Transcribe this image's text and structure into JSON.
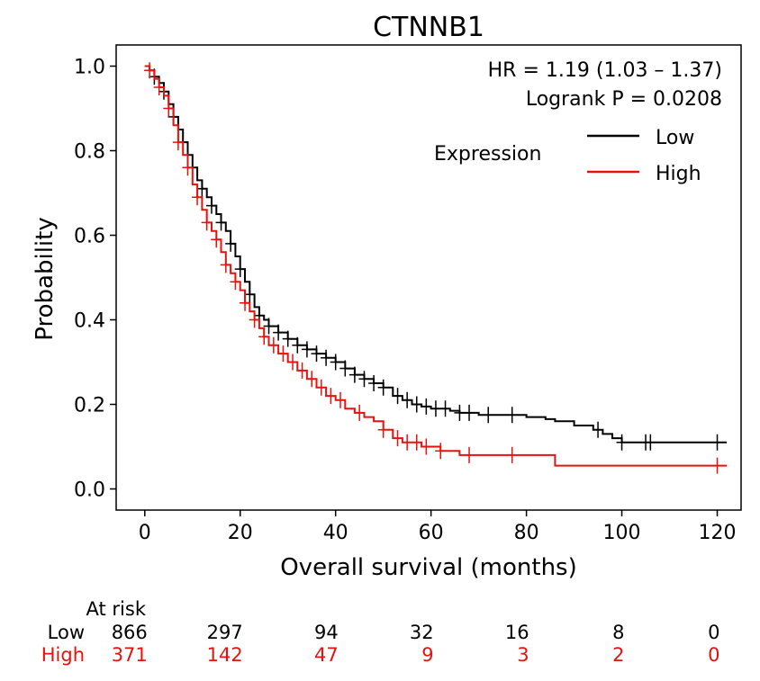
{
  "chart_data": {
    "type": "line",
    "title": "CTNNB1",
    "xlabel": "Overall survival (months)",
    "ylabel": "Probability",
    "xlim": [
      -6,
      125
    ],
    "ylim": [
      -0.05,
      1.05
    ],
    "xticks": [
      0,
      20,
      40,
      60,
      80,
      100,
      120
    ],
    "yticks": [
      0.0,
      0.2,
      0.4,
      0.6,
      0.8,
      1.0
    ],
    "xtick_labels": [
      "0",
      "20",
      "40",
      "60",
      "80",
      "100",
      "120"
    ],
    "ytick_labels": [
      "0.0",
      "0.2",
      "0.4",
      "0.6",
      "0.8",
      "1.0"
    ],
    "annotations": {
      "hr": "HR = 1.19 (1.03 – 1.37)",
      "logrank": "Logrank P = 0.0208"
    },
    "legend": {
      "title": "Expression",
      "position": "top-right",
      "entries": [
        {
          "label": "Low",
          "color": "#000000"
        },
        {
          "label": "High",
          "color": "#e8120c"
        }
      ]
    },
    "series": [
      {
        "name": "Low",
        "color": "#000000",
        "x": [
          0,
          1,
          2,
          3,
          4,
          5,
          6,
          7,
          8,
          9,
          10,
          11,
          12,
          13,
          14,
          15,
          16,
          17,
          18,
          19,
          20,
          21,
          22,
          23,
          24,
          25,
          26,
          28,
          30,
          32,
          34,
          36,
          38,
          40,
          42,
          44,
          46,
          48,
          50,
          52,
          54,
          56,
          58,
          60,
          62,
          64,
          66,
          68,
          70,
          75,
          80,
          82,
          84,
          86,
          88,
          90,
          92,
          94,
          96,
          98,
          100,
          105,
          110,
          115,
          120,
          122
        ],
        "y": [
          1.0,
          0.99,
          0.975,
          0.96,
          0.94,
          0.91,
          0.88,
          0.85,
          0.82,
          0.79,
          0.76,
          0.73,
          0.71,
          0.69,
          0.67,
          0.65,
          0.63,
          0.61,
          0.58,
          0.55,
          0.52,
          0.49,
          0.46,
          0.43,
          0.41,
          0.4,
          0.385,
          0.37,
          0.355,
          0.34,
          0.33,
          0.32,
          0.31,
          0.3,
          0.285,
          0.27,
          0.26,
          0.25,
          0.24,
          0.22,
          0.21,
          0.2,
          0.195,
          0.19,
          0.19,
          0.185,
          0.18,
          0.18,
          0.175,
          0.175,
          0.17,
          0.17,
          0.165,
          0.16,
          0.16,
          0.15,
          0.15,
          0.14,
          0.13,
          0.12,
          0.11,
          0.11,
          0.11,
          0.11,
          0.11,
          0.11
        ],
        "censor_x": [
          2,
          4,
          6,
          8,
          10,
          12,
          14,
          16,
          18,
          20,
          22,
          24,
          26,
          28,
          30,
          32,
          34,
          36,
          38,
          40,
          42,
          44,
          46,
          48,
          50,
          53,
          55,
          57,
          59,
          61,
          63,
          66,
          68,
          72,
          77,
          95,
          100,
          105,
          106,
          120
        ]
      },
      {
        "name": "High",
        "color": "#e8120c",
        "x": [
          0,
          1,
          2,
          3,
          4,
          5,
          6,
          7,
          8,
          9,
          10,
          11,
          12,
          13,
          14,
          15,
          16,
          17,
          18,
          19,
          20,
          21,
          22,
          23,
          24,
          25,
          26,
          28,
          30,
          32,
          34,
          36,
          38,
          40,
          42,
          44,
          46,
          48,
          50,
          52,
          54,
          56,
          58,
          60,
          62,
          64,
          66,
          68,
          70,
          75,
          80,
          85,
          86,
          90,
          100,
          110,
          120,
          122
        ],
        "y": [
          1.0,
          0.99,
          0.97,
          0.95,
          0.93,
          0.9,
          0.86,
          0.82,
          0.79,
          0.76,
          0.72,
          0.69,
          0.66,
          0.63,
          0.61,
          0.59,
          0.56,
          0.53,
          0.51,
          0.49,
          0.47,
          0.44,
          0.42,
          0.4,
          0.38,
          0.36,
          0.34,
          0.32,
          0.3,
          0.28,
          0.26,
          0.24,
          0.22,
          0.21,
          0.19,
          0.18,
          0.17,
          0.16,
          0.14,
          0.12,
          0.11,
          0.11,
          0.1,
          0.1,
          0.09,
          0.09,
          0.08,
          0.08,
          0.08,
          0.08,
          0.08,
          0.08,
          0.055,
          0.055,
          0.055,
          0.055,
          0.055,
          0.055
        ],
        "censor_x": [
          1,
          3,
          5,
          7,
          9,
          11,
          13,
          15,
          17,
          19,
          21,
          23,
          25,
          27,
          29,
          31,
          33,
          35,
          37,
          39,
          41,
          45,
          50,
          53,
          55,
          57,
          59,
          62,
          68,
          77,
          120
        ]
      }
    ]
  },
  "at_risk": {
    "header": "At risk",
    "rows": [
      {
        "label": "Low",
        "color": "#000000",
        "values": [
          "866",
          "297",
          "94",
          "32",
          "16",
          "8",
          "0"
        ]
      },
      {
        "label": "High",
        "color": "#e8120c",
        "values": [
          "371",
          "142",
          "47",
          "9",
          "3",
          "2",
          "0"
        ]
      }
    ]
  }
}
